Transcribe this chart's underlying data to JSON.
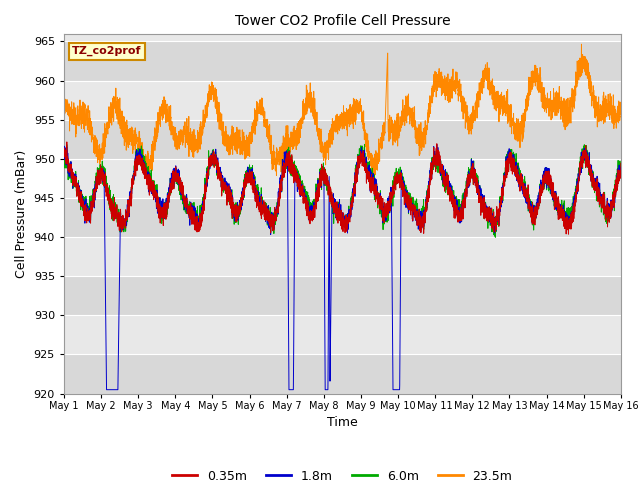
{
  "title": "Tower CO2 Profile Cell Pressure",
  "xlabel": "Time",
  "ylabel": "Cell Pressure (mBar)",
  "ylim": [
    920,
    966
  ],
  "yticks": [
    920,
    925,
    930,
    935,
    940,
    945,
    950,
    955,
    960,
    965
  ],
  "xtick_labels": [
    "May 1",
    "May 2",
    "May 3",
    "May 4",
    "May 5",
    "May 6",
    "May 7",
    "May 8",
    "May 9",
    "May 10",
    "May 11",
    "May 12",
    "May 13",
    "May 14",
    "May 15",
    "May 16"
  ],
  "legend_labels": [
    "0.35m",
    "1.8m",
    "6.0m",
    "23.5m"
  ],
  "legend_colors": [
    "#cc0000",
    "#0000cc",
    "#00aa00",
    "#ff8800"
  ],
  "annotation_text": "TZ_co2prof",
  "annotation_color": "#8b0000",
  "annotation_bg": "#ffffcc",
  "annotation_border": "#cc8800",
  "fig_bg": "#ffffff",
  "plot_bg_light": "#e8e8e8",
  "plot_bg_dark": "#d8d8d8",
  "grid_color": "#ffffff",
  "n_points": 4320,
  "days": 15
}
